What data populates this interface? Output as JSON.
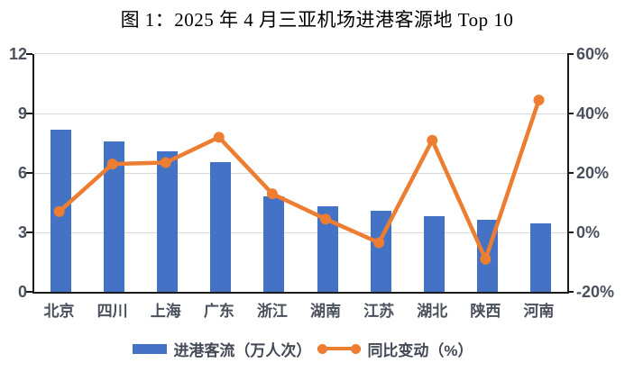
{
  "title": "图 1：2025 年 4 月三亚机场进港客源地 Top 10",
  "colors": {
    "bar": "#4472C4",
    "line": "#ED7D31",
    "grid": "#D9D9D9",
    "axis": "#1a1a1a",
    "tick_label": "#4a505c",
    "legend_label": "#444a55",
    "title": "#000000",
    "background": "#FFFFFF"
  },
  "chart_data": {
    "type": "combo-bar-line",
    "title": "图 1：2025 年 4 月三亚机场进港客源地 Top 10",
    "categories": [
      "北京",
      "四川",
      "上海",
      "广东",
      "浙江",
      "湖南",
      "江苏",
      "湖北",
      "陕西",
      "河南"
    ],
    "series": [
      {
        "name": "进港客流（万人次）",
        "type": "bar",
        "axis": "left",
        "color": "#4472C4",
        "values": [
          8.2,
          7.6,
          7.1,
          6.55,
          4.8,
          4.3,
          4.1,
          3.8,
          3.65,
          3.45
        ]
      },
      {
        "name": "同比变动（%）",
        "type": "line",
        "axis": "right",
        "color": "#ED7D31",
        "values": [
          7,
          23,
          23.5,
          32,
          13,
          4.5,
          -3.5,
          31,
          -9,
          44.5
        ]
      }
    ],
    "left_axis": {
      "min": 0,
      "max": 12,
      "ticks": [
        "12",
        "9",
        "6",
        "3",
        "0"
      ]
    },
    "right_axis": {
      "min": -20,
      "max": 60,
      "ticks": [
        "60%",
        "40%",
        "20%",
        "0%",
        "-20%"
      ]
    },
    "grid": "horizontal-on",
    "legend_position": "bottom"
  }
}
